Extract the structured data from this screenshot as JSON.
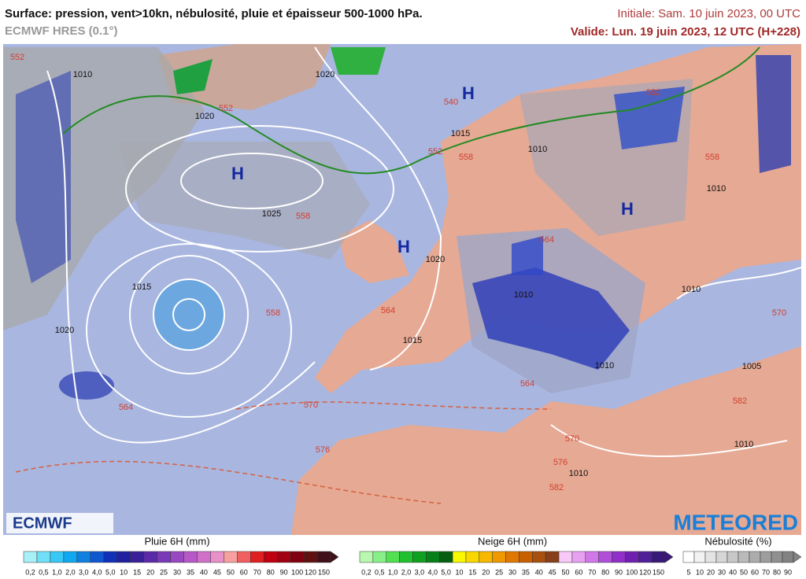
{
  "header": {
    "title": "Surface: pression, vent>10kn, nébulosité, pluie et épaisseur 500-1000 hPa.",
    "model": "ECMWF HRES (0.1°)",
    "initial": "Initiale: Sam. 10 juin 2023, 00 UTC",
    "valid": "Valide: Lun. 19 juin 2023, 12 UTC (H+228)"
  },
  "map": {
    "labels": [
      "552",
      "1010",
      "1020",
      "552",
      "1020",
      "540",
      "H",
      "1015",
      "552",
      "558",
      "1010",
      "552",
      "558",
      "1010",
      "H",
      "1025",
      "558",
      "H",
      "1020",
      "564",
      "H",
      "1015",
      "558",
      "564",
      "1015",
      "1010",
      "1010",
      "570",
      "1020",
      "564",
      "570",
      "576",
      "1010",
      "564",
      "1005",
      "582",
      "570",
      "576",
      "1010",
      "582",
      "1010"
    ]
  },
  "logos": {
    "left": "ECMWF",
    "right": "METEORED"
  },
  "legends": [
    {
      "title": "Pluie 6H (mm)",
      "ticks": [
        "0,2",
        "0,5",
        "1,0",
        "2,0",
        "3,0",
        "4,0",
        "5,0",
        "10",
        "15",
        "20",
        "25",
        "30",
        "35",
        "40",
        "45",
        "50",
        "60",
        "70",
        "80",
        "90",
        "100",
        "120",
        "150"
      ],
      "colors": [
        "#a8f0f8",
        "#70e0f8",
        "#38c8f8",
        "#10a8f0",
        "#1080e0",
        "#1058d0",
        "#1030b8",
        "#2020a0",
        "#3a2098",
        "#5a2aa8",
        "#7a3ab8",
        "#9848c0",
        "#b858c8",
        "#d070c8",
        "#e890c8",
        "#f8a0a0",
        "#f06060",
        "#e02020",
        "#c00010",
        "#a00010",
        "#800010",
        "#601010",
        "#401018"
      ]
    },
    {
      "title": "Neige 6H (mm)",
      "ticks": [
        "0,2",
        "0,5",
        "1,0",
        "2,0",
        "3,0",
        "4,0",
        "5,0",
        "10",
        "15",
        "20",
        "25",
        "30",
        "35",
        "40",
        "45",
        "50",
        "60",
        "70",
        "80",
        "90",
        "100",
        "120",
        "150"
      ],
      "colors": [
        "#b8f8b0",
        "#88f088",
        "#50e050",
        "#20c030",
        "#10a020",
        "#088018",
        "#046010",
        "#f8f800",
        "#f8d800",
        "#f8b800",
        "#f09800",
        "#e07800",
        "#c86000",
        "#a85010",
        "#884018",
        "#f8c8f8",
        "#e8a0f0",
        "#d078e8",
        "#b050d8",
        "#9030c8",
        "#7020b0",
        "#502098",
        "#381878"
      ]
    },
    {
      "title": "Nébulosité (%)",
      "ticks": [
        "5",
        "10",
        "20",
        "30",
        "40",
        "50",
        "60",
        "70",
        "80",
        "90"
      ],
      "colors": [
        "#ffffff",
        "#f2f2f2",
        "#e4e4e4",
        "#d6d6d6",
        "#c8c8c8",
        "#bababa",
        "#acacac",
        "#9e9e9e",
        "#909090",
        "#828282"
      ]
    }
  ]
}
